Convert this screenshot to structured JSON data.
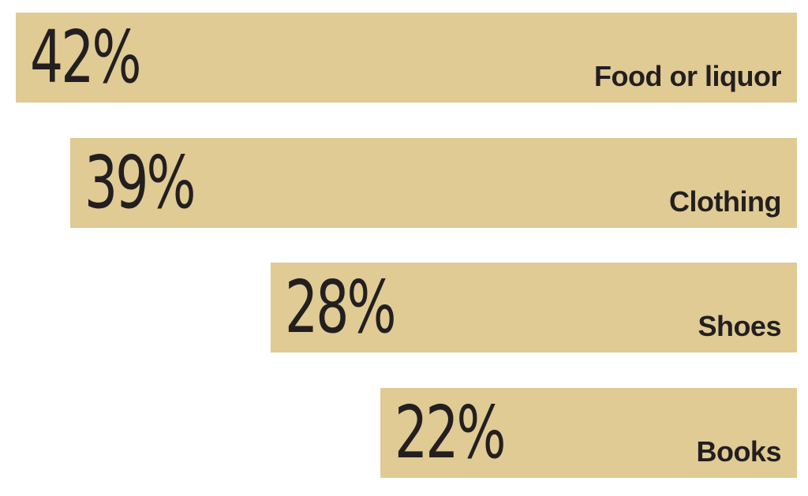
{
  "colors": {
    "bar": "#dfcb93",
    "text": "#231f20",
    "background": "#ffffff"
  },
  "chart_data": {
    "type": "bar",
    "orientation": "horizontal",
    "alignment": "right",
    "title": "",
    "xlabel": "",
    "ylabel": "",
    "categories": [
      "Food or liquor",
      "Clothing",
      "Shoes",
      "Books"
    ],
    "values": [
      42,
      39,
      28,
      22
    ],
    "value_labels": [
      "42%",
      "39%",
      "28%",
      "22%"
    ],
    "unit": "%",
    "grid": false,
    "legend": "none"
  }
}
